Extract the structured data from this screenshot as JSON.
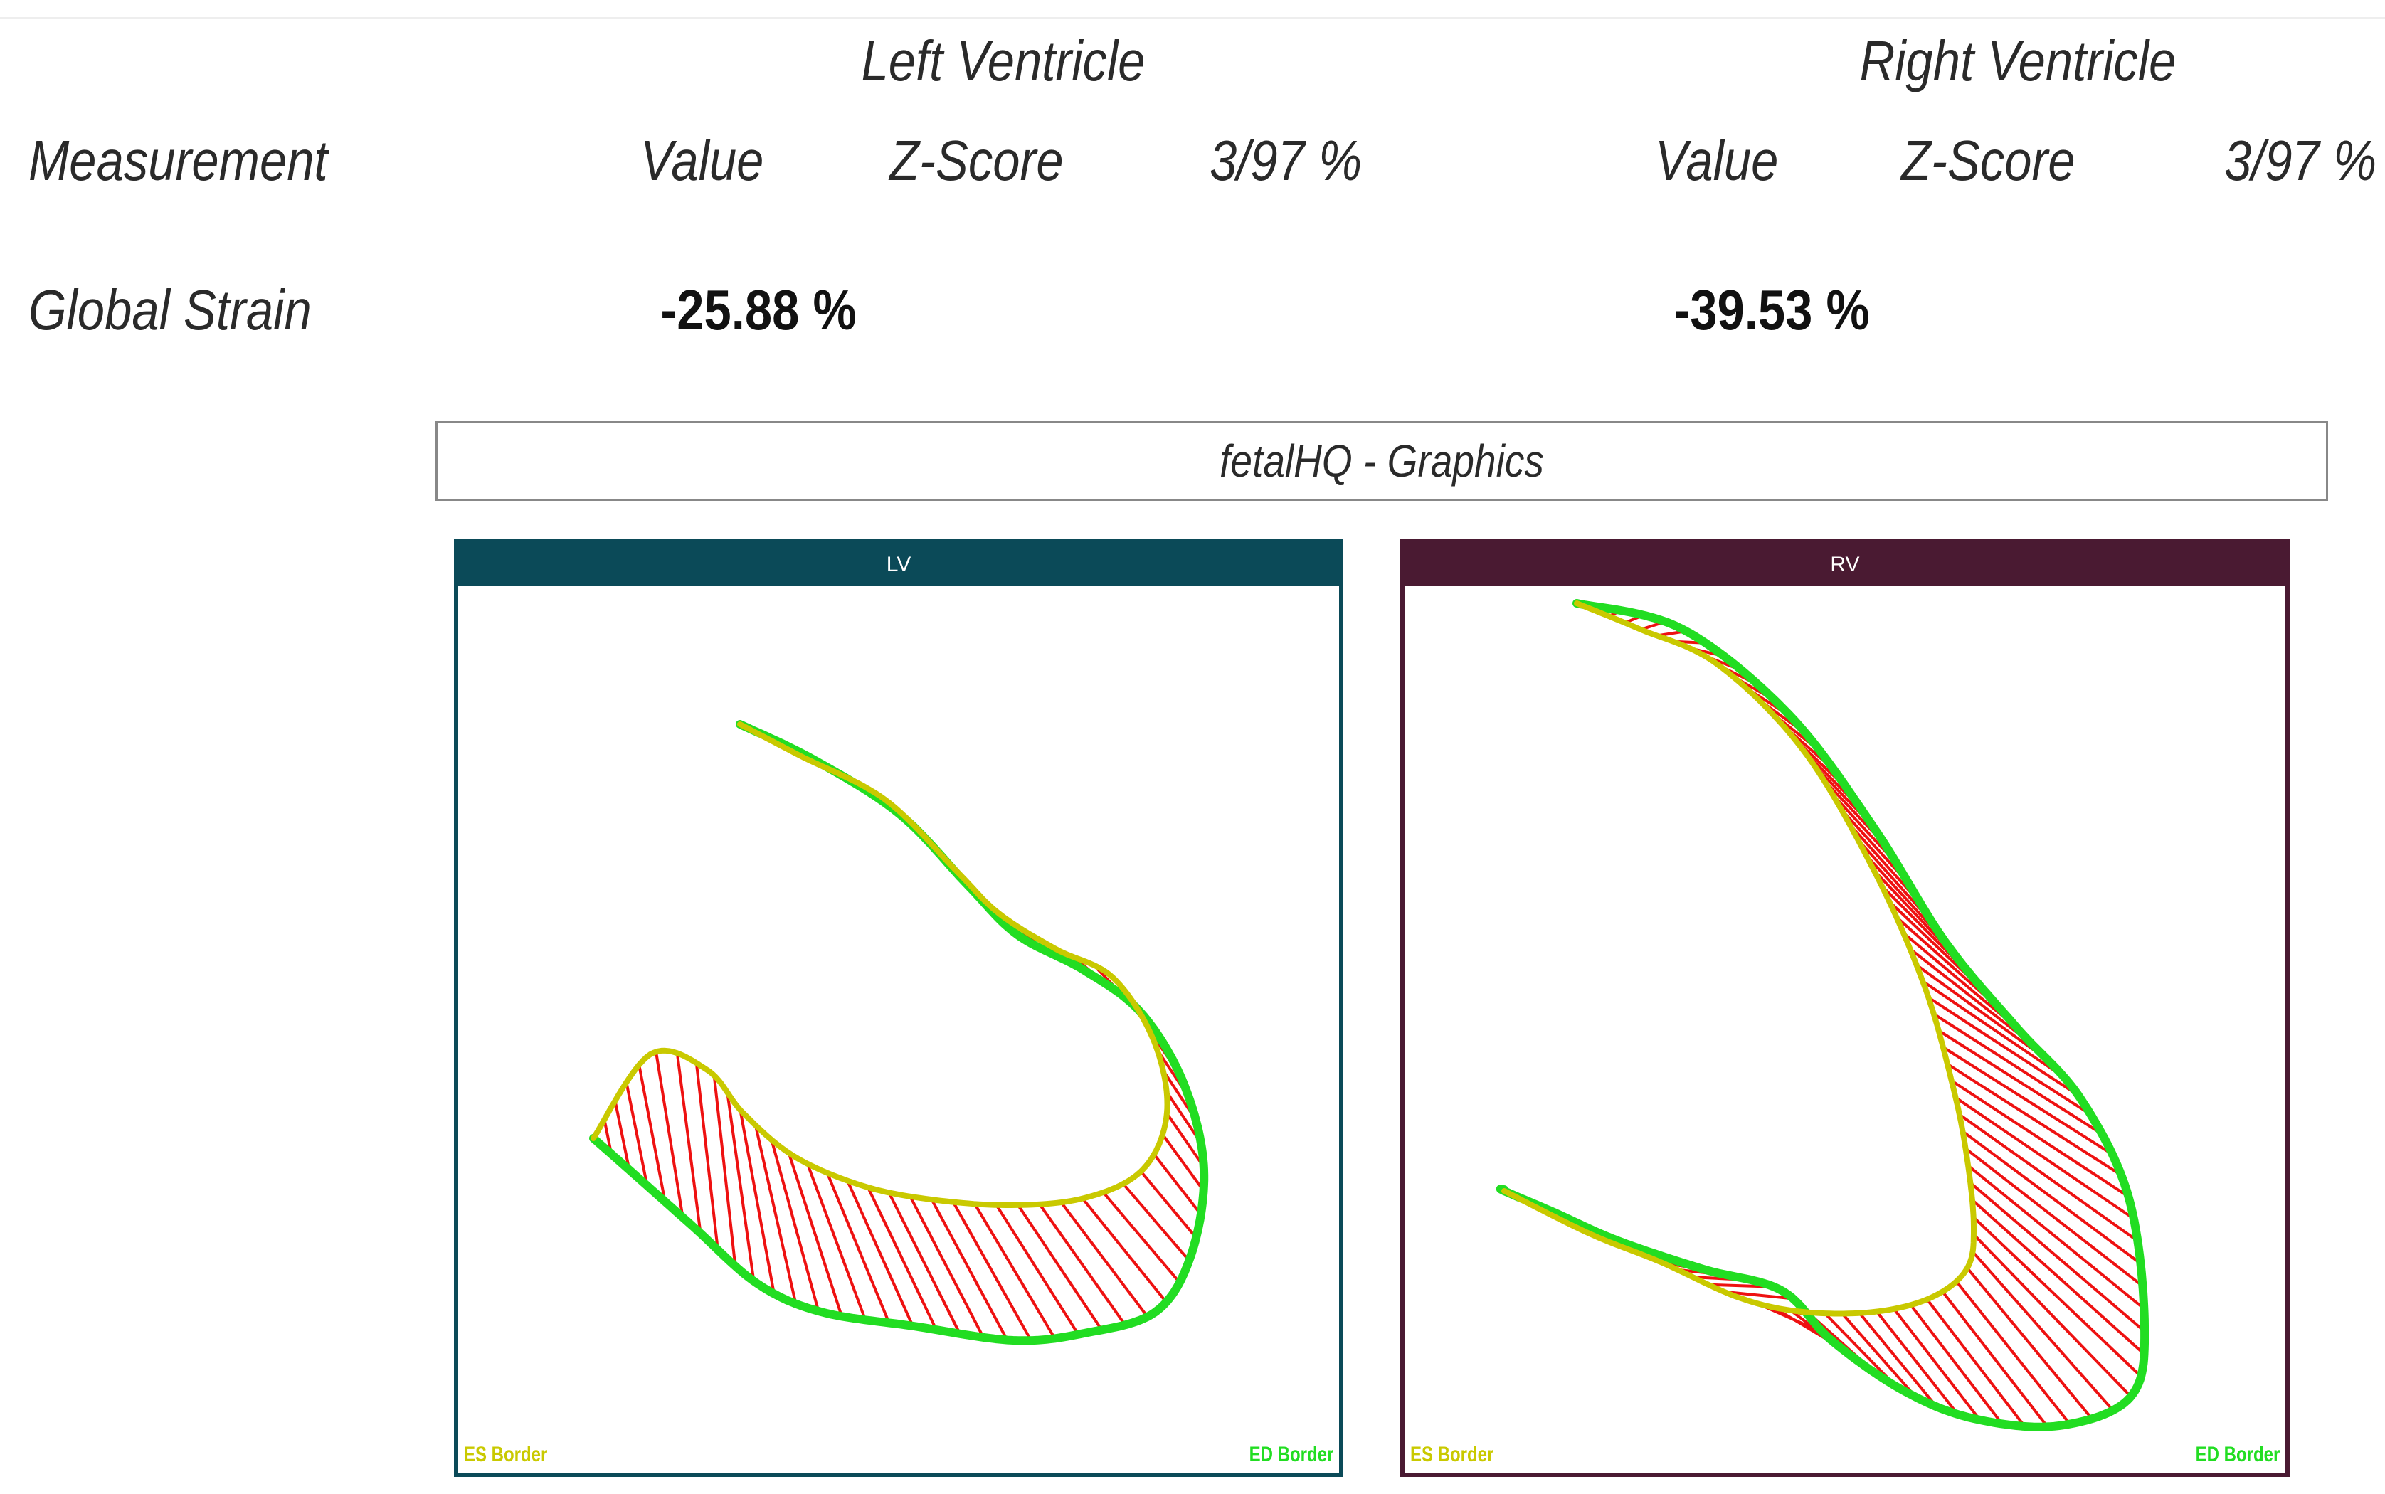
{
  "header": {
    "left_section": "Left Ventricle",
    "right_section": "Right Ventricle",
    "measurement_col": "Measurement",
    "lv_value_col": "Value",
    "lv_zscore_col": "Z-Score",
    "lv_pct_col": "3/97 %",
    "rv_value_col": "Value",
    "rv_zscore_col": "Z-Score",
    "rv_pct_col": "3/97 %"
  },
  "rows": [
    {
      "label": "Global Strain",
      "lv_value": "-25.88 %",
      "rv_value": "-39.53 %"
    }
  ],
  "graphics_title": "fetalHQ - Graphics",
  "panels": {
    "lv": {
      "title": "LV",
      "header_color": "#0b4a58",
      "es_label": "ES Border",
      "ed_label": "ED Border"
    },
    "rv": {
      "title": "RV",
      "header_color": "#4a1a32",
      "es_label": "ES Border",
      "ed_label": "ED Border"
    }
  },
  "colors": {
    "es_border": "#c9c900",
    "ed_border": "#22dd22",
    "strain_lines": "#ee1111"
  }
}
